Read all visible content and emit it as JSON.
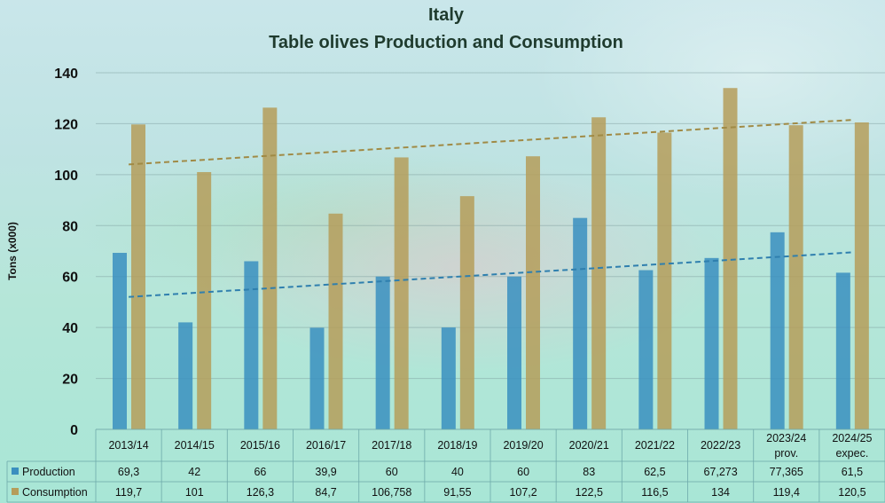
{
  "chart_data": {
    "type": "bar",
    "title": "Italy",
    "subtitle": "Table olives Production and Consumption",
    "ylabel": "Tons (x000)",
    "xlabel": "",
    "ylim": [
      0,
      140
    ],
    "yticks": [
      0,
      20,
      40,
      60,
      80,
      100,
      120,
      140
    ],
    "grid": true,
    "categories": [
      "2013/14",
      "2014/15",
      "2015/16",
      "2016/17",
      "2017/18",
      "2018/19",
      "2019/20",
      "2020/21",
      "2021/22",
      "2022/23",
      "2023/24\nprov.",
      "2024/25\nexpec."
    ],
    "series": [
      {
        "name": "Production",
        "color": "#3a8fbf",
        "values": [
          69.3,
          42,
          66,
          39.9,
          60,
          40,
          60,
          83,
          62.5,
          67.273,
          77.365,
          61.5
        ],
        "labels": [
          "69,3",
          "42",
          "66",
          "39,9",
          "60",
          "40",
          "60",
          "83",
          "62,5",
          "67,273",
          "77,365",
          "61,5"
        ],
        "trendline": [
          52,
          69.5
        ]
      },
      {
        "name": "Consumption",
        "color": "#b59d5a",
        "values": [
          119.7,
          101,
          126.3,
          84.7,
          106.758,
          91.55,
          107.2,
          122.5,
          116.5,
          134,
          119.4,
          120.5
        ],
        "labels": [
          "119,7",
          "101",
          "126,3",
          "84,7",
          "106,758",
          "91,55",
          "107,2",
          "122,5",
          "116,5",
          "134",
          "119,4",
          "120,5"
        ],
        "trendline": [
          104,
          121.5
        ]
      }
    ],
    "legend": "data-table"
  }
}
